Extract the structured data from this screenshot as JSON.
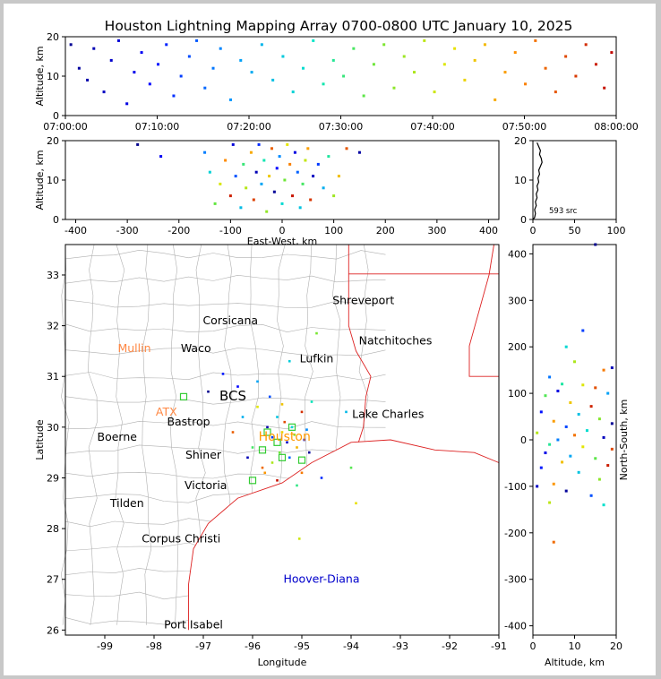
{
  "title": "Houston Lightning Mapping Array 0700-0800 UTC January 10, 2025",
  "colors": {
    "map_lines": "#b0b0b0",
    "coast": "#dd2222",
    "houston_label": "#ff9900",
    "mullin_atx": "#ff8844",
    "hoover": "#0000cc",
    "station": "#33cc33"
  },
  "chart_data": [
    {
      "type": "scatter",
      "name": "time-altitude",
      "xlabel": "",
      "ylabel": "Altitude, km",
      "xlim": [
        "07:00:00",
        "08:00:00"
      ],
      "ylim": [
        0,
        20
      ],
      "xticks": [
        "07:00:00",
        "07:10:00",
        "07:20:00",
        "07:30:00",
        "07:40:00",
        "07:50:00",
        "08:00:00"
      ],
      "yticks": [
        "0",
        "10",
        "20"
      ],
      "color_by": "time",
      "x_minutes_from": 0,
      "points": [
        [
          0.6,
          18
        ],
        [
          1.5,
          12
        ],
        [
          2.4,
          9
        ],
        [
          3.1,
          17
        ],
        [
          4.2,
          6
        ],
        [
          5.0,
          14
        ],
        [
          5.8,
          19
        ],
        [
          6.7,
          3
        ],
        [
          7.5,
          11
        ],
        [
          8.3,
          16
        ],
        [
          9.2,
          8
        ],
        [
          10.1,
          13
        ],
        [
          11.0,
          18
        ],
        [
          11.8,
          5
        ],
        [
          12.6,
          10
        ],
        [
          13.5,
          15
        ],
        [
          14.3,
          19
        ],
        [
          15.2,
          7
        ],
        [
          16.1,
          12
        ],
        [
          16.9,
          17
        ],
        [
          18.0,
          4
        ],
        [
          19.1,
          14
        ],
        [
          20.3,
          11
        ],
        [
          21.4,
          18
        ],
        [
          22.6,
          9
        ],
        [
          23.7,
          15
        ],
        [
          24.8,
          6
        ],
        [
          25.9,
          12
        ],
        [
          27.0,
          19
        ],
        [
          28.1,
          8
        ],
        [
          29.2,
          14
        ],
        [
          30.3,
          10
        ],
        [
          31.4,
          17
        ],
        [
          32.5,
          5
        ],
        [
          33.6,
          13
        ],
        [
          34.7,
          18
        ],
        [
          35.8,
          7
        ],
        [
          36.9,
          15
        ],
        [
          38.0,
          11
        ],
        [
          39.1,
          19
        ],
        [
          40.2,
          6
        ],
        [
          41.3,
          13
        ],
        [
          42.4,
          17
        ],
        [
          43.5,
          9
        ],
        [
          44.6,
          14
        ],
        [
          45.7,
          18
        ],
        [
          46.8,
          4
        ],
        [
          47.9,
          11
        ],
        [
          49.0,
          16
        ],
        [
          50.1,
          8
        ],
        [
          51.2,
          19
        ],
        [
          52.3,
          12
        ],
        [
          53.4,
          6
        ],
        [
          54.5,
          15
        ],
        [
          55.6,
          10
        ],
        [
          56.7,
          18
        ],
        [
          57.8,
          13
        ],
        [
          58.7,
          7
        ],
        [
          59.5,
          16
        ]
      ]
    },
    {
      "type": "scatter",
      "name": "east-west-altitude",
      "xlabel": "East-West, km",
      "ylabel": "Altitude, km",
      "xlim": [
        -420,
        420
      ],
      "ylim": [
        0,
        20
      ],
      "xticks": [
        "-400",
        "-300",
        "-200",
        "-100",
        "0",
        "100",
        "200",
        "300",
        "400"
      ],
      "yticks": [
        "0",
        "10",
        "20"
      ],
      "points": [
        [
          -280,
          19
        ],
        [
          -235,
          16
        ],
        [
          -150,
          17
        ],
        [
          -140,
          12
        ],
        [
          -130,
          4
        ],
        [
          -120,
          9
        ],
        [
          -110,
          15
        ],
        [
          -100,
          6
        ],
        [
          -95,
          19
        ],
        [
          -90,
          11
        ],
        [
          -80,
          3
        ],
        [
          -75,
          14
        ],
        [
          -70,
          8
        ],
        [
          -60,
          17
        ],
        [
          -55,
          5
        ],
        [
          -50,
          12
        ],
        [
          -45,
          19
        ],
        [
          -40,
          9
        ],
        [
          -35,
          15
        ],
        [
          -30,
          2
        ],
        [
          -25,
          11
        ],
        [
          -20,
          18
        ],
        [
          -15,
          7
        ],
        [
          -10,
          13
        ],
        [
          -5,
          16
        ],
        [
          0,
          4
        ],
        [
          5,
          10
        ],
        [
          10,
          19
        ],
        [
          15,
          14
        ],
        [
          20,
          6
        ],
        [
          25,
          17
        ],
        [
          30,
          12
        ],
        [
          35,
          3
        ],
        [
          40,
          9
        ],
        [
          45,
          15
        ],
        [
          50,
          18
        ],
        [
          55,
          5
        ],
        [
          60,
          11
        ],
        [
          70,
          14
        ],
        [
          80,
          8
        ],
        [
          90,
          16
        ],
        [
          100,
          6
        ],
        [
          110,
          11
        ],
        [
          125,
          18
        ],
        [
          150,
          17
        ]
      ]
    },
    {
      "type": "line",
      "name": "altitude-histogram",
      "xlabel": "",
      "ylabel": "",
      "xlim": [
        0,
        100
      ],
      "ylim": [
        0,
        20
      ],
      "xticks": [
        "0",
        "50",
        "100"
      ],
      "yticks": [
        "0",
        "10",
        "20"
      ],
      "annotation": "593 src",
      "profile": [
        [
          0,
          0
        ],
        [
          2,
          0.5
        ],
        [
          3,
          1.5
        ],
        [
          2,
          2.5
        ],
        [
          4,
          3.5
        ],
        [
          3,
          4.5
        ],
        [
          5,
          5.5
        ],
        [
          4,
          6.5
        ],
        [
          6,
          7.5
        ],
        [
          5,
          8.5
        ],
        [
          7,
          9.5
        ],
        [
          6,
          10.5
        ],
        [
          8,
          11.5
        ],
        [
          7,
          12.5
        ],
        [
          9,
          13.5
        ],
        [
          11,
          14.5
        ],
        [
          10,
          15.5
        ],
        [
          8,
          16.5
        ],
        [
          9,
          17.5
        ],
        [
          7,
          18.5
        ],
        [
          5,
          19.5
        ]
      ]
    },
    {
      "type": "scatter",
      "name": "plan-view-map",
      "xlabel": "Longitude",
      "ylabel": "Latitude",
      "xlim": [
        -99.8,
        -91
      ],
      "ylim": [
        25.9,
        33.6
      ],
      "xticks": [
        "-99",
        "-98",
        "-97",
        "-96",
        "-95",
        "-94",
        "-93",
        "-92",
        "-91"
      ],
      "yticks": [
        "26",
        "27",
        "28",
        "29",
        "30",
        "31",
        "32",
        "33"
      ],
      "places": [
        {
          "label": "Shreveport",
          "lon": -93.75,
          "lat": 32.5,
          "style": "city"
        },
        {
          "label": "Corsicana",
          "lon": -96.45,
          "lat": 32.1,
          "style": "city"
        },
        {
          "label": "Natchitoches",
          "lon": -93.1,
          "lat": 31.7,
          "style": "city"
        },
        {
          "label": "Mullin",
          "lon": -98.4,
          "lat": 31.55,
          "style": "orange"
        },
        {
          "label": "Waco",
          "lon": -97.15,
          "lat": 31.55,
          "style": "city"
        },
        {
          "label": "Lufkin",
          "lon": -94.7,
          "lat": 31.35,
          "style": "city"
        },
        {
          "label": "BCS",
          "lon": -96.4,
          "lat": 30.6,
          "style": "large"
        },
        {
          "label": "ATX",
          "lon": -97.75,
          "lat": 30.3,
          "style": "orange"
        },
        {
          "label": "Bastrop",
          "lon": -97.3,
          "lat": 30.1,
          "style": "city"
        },
        {
          "label": "Lake Charles",
          "lon": -93.25,
          "lat": 30.25,
          "style": "city"
        },
        {
          "label": "Boerne",
          "lon": -98.75,
          "lat": 29.8,
          "style": "city"
        },
        {
          "label": "Houston",
          "lon": -95.35,
          "lat": 29.8,
          "style": "houston"
        },
        {
          "label": "Shiner",
          "lon": -97.0,
          "lat": 29.45,
          "style": "city"
        },
        {
          "label": "Victoria",
          "lon": -96.95,
          "lat": 28.85,
          "style": "city"
        },
        {
          "label": "Tilden",
          "lon": -98.55,
          "lat": 28.5,
          "style": "city"
        },
        {
          "label": "Corpus Christi",
          "lon": -97.45,
          "lat": 27.8,
          "style": "city"
        },
        {
          "label": "Hoover-Diana",
          "lon": -94.6,
          "lat": 27.0,
          "style": "hoover"
        },
        {
          "label": "Port Isabel",
          "lon": -97.2,
          "lat": 26.1,
          "style": "city"
        }
      ],
      "stations": [
        [
          -97.4,
          30.6
        ],
        [
          -95.7,
          29.9
        ],
        [
          -95.4,
          29.4
        ],
        [
          -95.0,
          29.35
        ],
        [
          -96.0,
          28.95
        ],
        [
          -95.5,
          29.7
        ],
        [
          -95.2,
          30.0
        ],
        [
          -95.8,
          29.55
        ]
      ],
      "points": [
        [
          -96.9,
          30.7
        ],
        [
          -96.6,
          31.05
        ],
        [
          -96.2,
          30.2
        ],
        [
          -96.0,
          29.6
        ],
        [
          -95.9,
          30.4
        ],
        [
          -95.8,
          29.2
        ],
        [
          -95.7,
          30.0
        ],
        [
          -95.6,
          29.8
        ],
        [
          -95.5,
          30.2
        ],
        [
          -95.45,
          29.5
        ],
        [
          -95.4,
          29.9
        ],
        [
          -95.35,
          30.1
        ],
        [
          -95.3,
          29.7
        ],
        [
          -95.25,
          29.4
        ],
        [
          -95.2,
          30.0
        ],
        [
          -95.15,
          29.85
        ],
        [
          -95.1,
          29.6
        ],
        [
          -95.0,
          30.3
        ],
        [
          -94.95,
          29.75
        ],
        [
          -94.9,
          29.95
        ],
        [
          -94.8,
          30.5
        ],
        [
          -95.6,
          29.3
        ],
        [
          -95.75,
          29.1
        ],
        [
          -95.5,
          28.95
        ],
        [
          -96.3,
          30.8
        ],
        [
          -95.9,
          30.9
        ],
        [
          -95.1,
          28.85
        ],
        [
          -95.05,
          27.8
        ],
        [
          -95.0,
          29.1
        ],
        [
          -94.85,
          29.5
        ],
        [
          -94.6,
          29.0
        ],
        [
          -94.1,
          30.3
        ],
        [
          -94.0,
          29.2
        ],
        [
          -93.9,
          28.5
        ],
        [
          -96.4,
          29.9
        ],
        [
          -96.1,
          29.4
        ],
        [
          -95.65,
          30.6
        ],
        [
          -95.25,
          31.3
        ],
        [
          -94.7,
          31.85
        ],
        [
          -95.4,
          30.45
        ]
      ]
    },
    {
      "type": "scatter",
      "name": "altitude-north-south",
      "xlabel": "Altitude, km",
      "ylabel": "North-South, km",
      "xlim": [
        0,
        20
      ],
      "ylim": [
        -420,
        420
      ],
      "xticks": [
        "0",
        "10",
        "20"
      ],
      "yticks": [
        "-400",
        "-300",
        "-200",
        "-100",
        "0",
        "100",
        "200",
        "300",
        "400"
      ],
      "points": [
        [
          15,
          420
        ],
        [
          12,
          235
        ],
        [
          8,
          200
        ],
        [
          10,
          168
        ],
        [
          17,
          150
        ],
        [
          19,
          155
        ],
        [
          4,
          135
        ],
        [
          7,
          120
        ],
        [
          12,
          118
        ],
        [
          15,
          112
        ],
        [
          6,
          105
        ],
        [
          18,
          100
        ],
        [
          3,
          95
        ],
        [
          9,
          80
        ],
        [
          14,
          72
        ],
        [
          2,
          60
        ],
        [
          11,
          55
        ],
        [
          16,
          45
        ],
        [
          5,
          40
        ],
        [
          19,
          35
        ],
        [
          8,
          28
        ],
        [
          13,
          20
        ],
        [
          1,
          15
        ],
        [
          10,
          10
        ],
        [
          17,
          5
        ],
        [
          6,
          0
        ],
        [
          4,
          -10
        ],
        [
          12,
          -15
        ],
        [
          19,
          -20
        ],
        [
          3,
          -28
        ],
        [
          9,
          -35
        ],
        [
          15,
          -40
        ],
        [
          7,
          -48
        ],
        [
          18,
          -55
        ],
        [
          2,
          -60
        ],
        [
          11,
          -70
        ],
        [
          16,
          -85
        ],
        [
          5,
          -95
        ],
        [
          8,
          -110
        ],
        [
          14,
          -120
        ],
        [
          17,
          -140
        ],
        [
          4,
          -135
        ],
        [
          5,
          -220
        ],
        [
          1,
          -100
        ]
      ]
    }
  ]
}
